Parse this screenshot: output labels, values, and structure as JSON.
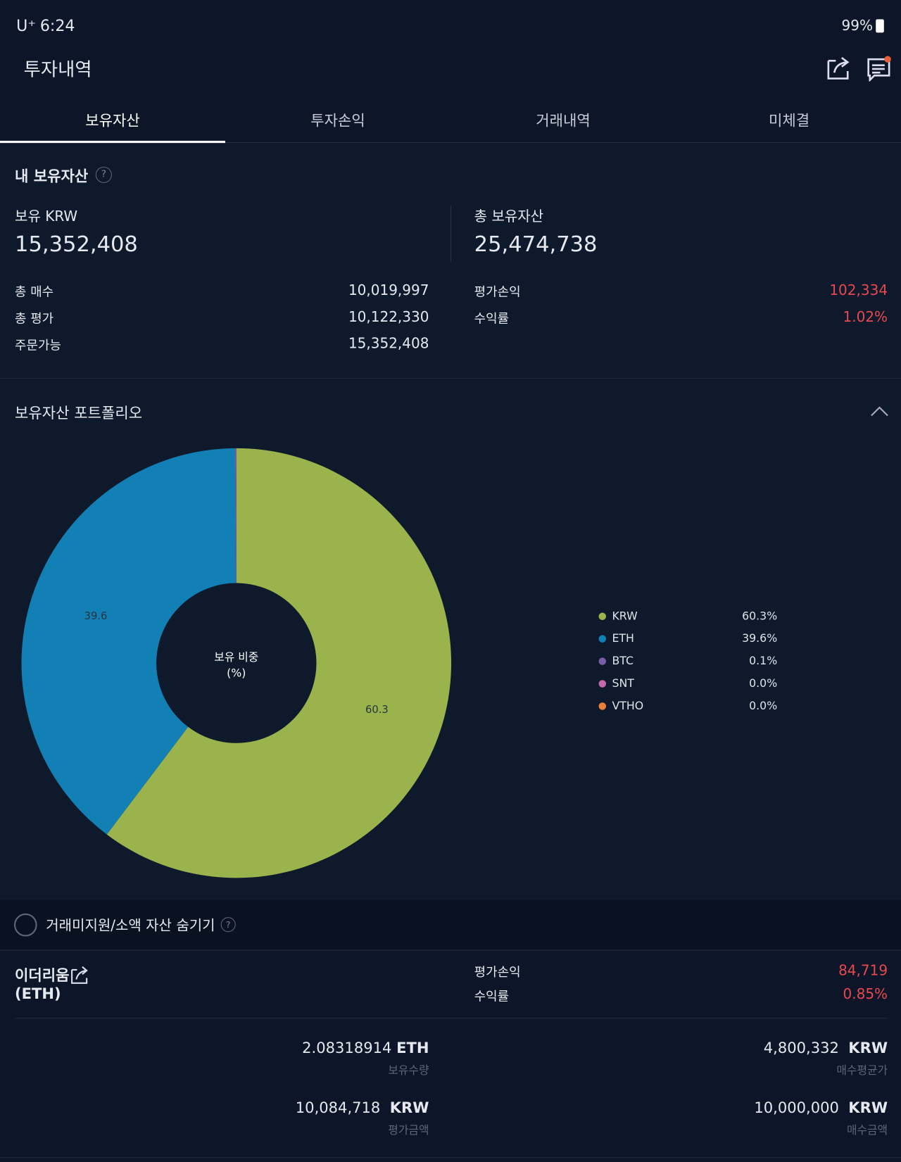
{
  "status_bar": {
    "carrier": "U⁺",
    "time": "6:24",
    "battery": "99%"
  },
  "header": {
    "title": "투자내역"
  },
  "tabs": [
    "보유자산",
    "투자손익",
    "거래내역",
    "미체결"
  ],
  "summary": {
    "title": "내 보유자산",
    "help": "?",
    "krw_label": "보유 KRW",
    "krw_value": "15,352,408",
    "total_label": "총 보유자산",
    "total_value": "25,474,738",
    "rows_left": [
      [
        "총 매수",
        "10,019,997"
      ],
      [
        "총 평가",
        "10,122,330"
      ],
      [
        "주문가능",
        "15,352,408"
      ]
    ],
    "rows_right": [
      [
        "평가손익",
        "102,334"
      ],
      [
        "수익률",
        "1.02%"
      ]
    ]
  },
  "portfolio": {
    "title": "보유자산 포트폴리오",
    "center_label": "보유 비중",
    "center_unit": "(%)",
    "chart": {
      "type": "donut",
      "categories": [
        "KRW",
        "ETH",
        "BTC",
        "SNT",
        "VTHO"
      ],
      "values": [
        60.3,
        39.6,
        0.1,
        0.0,
        0.0
      ],
      "value_labels": [
        "60.3%",
        "39.6%",
        "0.1%",
        "0.0%",
        "0.0%"
      ],
      "colors": [
        "#9ab34c",
        "#1380b5",
        "#7b5ea7",
        "#c46aa8",
        "#e8803a"
      ]
    }
  },
  "hide_toggle": {
    "label": "거래미지원/소액 자산 숨기기",
    "help": "?"
  },
  "asset": {
    "name": "이더리움",
    "symbol": "(ETH)",
    "pnl_label": "평가손익",
    "pnl": "84,719",
    "rate_label": "수익률",
    "rate": "0.85%",
    "cells": [
      {
        "value": "2.08318914",
        "unit": "ETH",
        "label": "보유수량"
      },
      {
        "value": "4,800,332",
        "unit": "KRW",
        "label": "매수평균가"
      },
      {
        "value": "10,084,718",
        "unit": "KRW",
        "label": "평가금액"
      },
      {
        "value": "10,000,000",
        "unit": "KRW",
        "label": "매수금액"
      }
    ]
  }
}
